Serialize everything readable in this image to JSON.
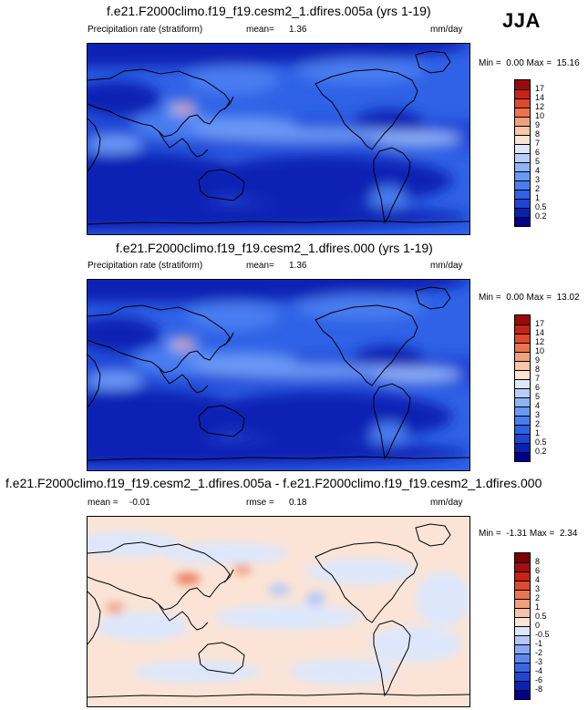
{
  "season": "JJA",
  "panels": [
    {
      "title": "f.e21.F2000climo.f19_f19.cesm2_1.dfires.005a (yrs 1-19)",
      "left_label": "Precipitation rate (stratiform)",
      "stat_label": "mean=",
      "stat_value": "1.36",
      "units": "mm/day",
      "minmax": {
        "min_label": "Min =",
        "min": "0.00",
        "max_label": "Max =",
        "max": "15.16"
      }
    },
    {
      "title": "f.e21.F2000climo.f19_f19.cesm2_1.dfires.000 (yrs 1-19)",
      "left_label": "Precipitation rate (stratiform)",
      "stat_label": "mean=",
      "stat_value": "1.36",
      "units": "mm/day",
      "minmax": {
        "min_label": "Min =",
        "min": "0.00",
        "max_label": "Max =",
        "max": "13.02"
      }
    },
    {
      "title": "f.e21.F2000climo.f19_f19.cesm2_1.dfires.005a - f.e21.F2000climo.f19_f19.cesm2_1.dfires.000",
      "left_label": "mean =",
      "left_value": "-0.01",
      "stat_label": "rmse =",
      "stat_value": "0.18",
      "units": "mm/day",
      "minmax": {
        "min_label": "Min =",
        "min": "-1.31",
        "max_label": "Max =",
        "max": "2.34"
      }
    }
  ],
  "chart_data": [
    {
      "type": "heatmap",
      "title": "f.e21.F2000climo.f19_f19.cesm2_1.dfires.005a (yrs 1-19)",
      "variable": "Precipitation rate (stratiform)",
      "units": "mm/day",
      "mean": 1.36,
      "min": 0.0,
      "max": 15.16,
      "colorbar_levels": [
        "0.2",
        "0.5",
        "1",
        "2",
        "3",
        "4",
        "5",
        "6",
        "7",
        "8",
        "9",
        "10",
        "12",
        "14",
        "17"
      ],
      "colorbar_colors": [
        "#00008b",
        "#0a22b4",
        "#1f45d6",
        "#2f62e6",
        "#4a7df0",
        "#6a98f5",
        "#8fb3f8",
        "#b7cef9",
        "#dce7fb",
        "#fbe3d3",
        "#f8c6a8",
        "#f3a17d",
        "#ec7350",
        "#df4a2c",
        "#c82316",
        "#9a0a0a"
      ]
    },
    {
      "type": "heatmap",
      "title": "f.e21.F2000climo.f19_f19.cesm2_1.dfires.000 (yrs 1-19)",
      "variable": "Precipitation rate (stratiform)",
      "units": "mm/day",
      "mean": 1.36,
      "min": 0.0,
      "max": 13.02,
      "colorbar_levels": [
        "0.2",
        "0.5",
        "1",
        "2",
        "3",
        "4",
        "5",
        "6",
        "7",
        "8",
        "9",
        "10",
        "12",
        "14",
        "17"
      ],
      "colorbar_colors": [
        "#00008b",
        "#0a22b4",
        "#1f45d6",
        "#2f62e6",
        "#4a7df0",
        "#6a98f5",
        "#8fb3f8",
        "#b7cef9",
        "#dce7fb",
        "#fbe3d3",
        "#f8c6a8",
        "#f3a17d",
        "#ec7350",
        "#df4a2c",
        "#c82316",
        "#9a0a0a"
      ]
    },
    {
      "type": "heatmap",
      "title": "f.e21.F2000climo.f19_f19.cesm2_1.dfires.005a - f.e21.F2000climo.f19_f19.cesm2_1.dfires.000",
      "units": "mm/day",
      "mean": -0.01,
      "rmse": 0.18,
      "min": -1.31,
      "max": 2.34,
      "colorbar_levels": [
        "-8",
        "-6",
        "-4",
        "-3",
        "-2",
        "-1",
        "-0.5",
        "0",
        "0.5",
        "1",
        "2",
        "3",
        "4",
        "6",
        "8"
      ],
      "colorbar_colors": [
        "#00008b",
        "#0a22b4",
        "#1f45d6",
        "#3a66e6",
        "#5d86ef",
        "#86a8f5",
        "#b3c8f8",
        "#dde7fb",
        "#fbe4d6",
        "#f7c3a8",
        "#f19f80",
        "#e87656",
        "#dc4c30",
        "#c82316",
        "#a30f0f",
        "#7a0000"
      ]
    }
  ]
}
